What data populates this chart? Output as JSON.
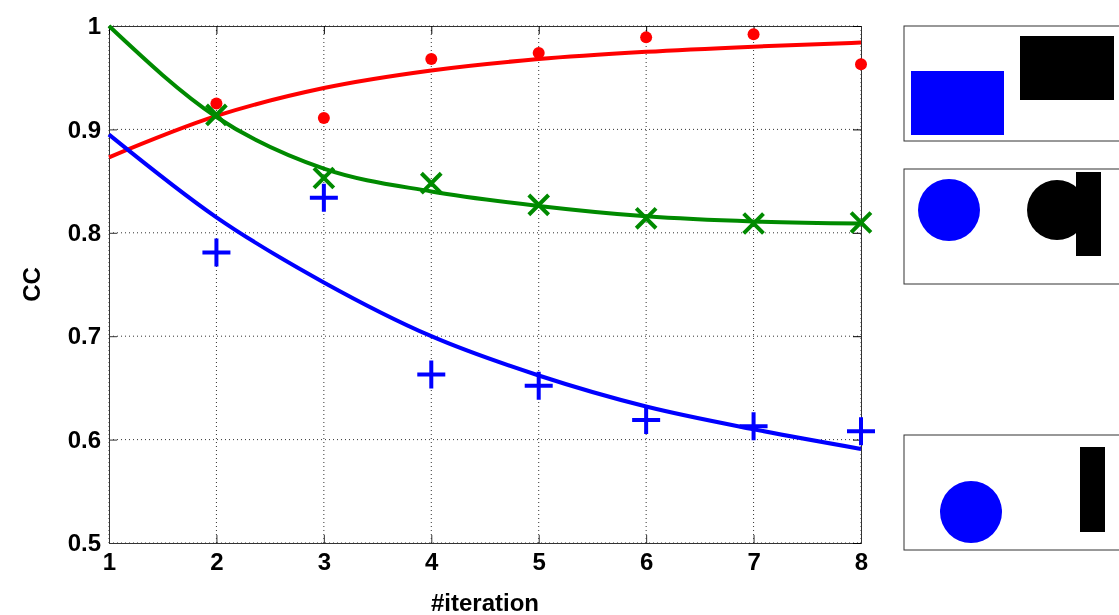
{
  "chart_data": {
    "type": "scatter",
    "xlabel": "#iteration",
    "ylabel": "CC",
    "x": [
      1,
      2,
      3,
      4,
      5,
      6,
      7,
      8
    ],
    "series": [
      {
        "type": "line",
        "color": "#ff0000",
        "marker": "none",
        "values": [
          0.873,
          0.913,
          0.94,
          0.957,
          0.968,
          0.975,
          0.98,
          0.984
        ]
      },
      {
        "type": "line",
        "color": "#008a00",
        "marker": "none",
        "values": [
          1.0,
          0.912,
          0.862,
          0.84,
          0.826,
          0.816,
          0.811,
          0.809
        ]
      },
      {
        "type": "line",
        "color": "#0000ff",
        "marker": "none",
        "values": [
          0.895,
          0.815,
          0.752,
          0.7,
          0.662,
          0.632,
          0.61,
          0.591
        ]
      },
      {
        "type": "scatter",
        "color": "#ff0000",
        "marker": "circle",
        "x": [
          2,
          3,
          4,
          5,
          6,
          7,
          8
        ],
        "values": [
          0.925,
          0.911,
          0.968,
          0.974,
          0.989,
          0.992,
          0.963
        ]
      },
      {
        "type": "scatter",
        "color": "#008a00",
        "marker": "x",
        "x": [
          2,
          3,
          4,
          5,
          6,
          7,
          8
        ],
        "values": [
          0.914,
          0.853,
          0.848,
          0.827,
          0.814,
          0.809,
          0.81
        ]
      },
      {
        "type": "scatter",
        "color": "#0000ff",
        "marker": "cross",
        "x": [
          2,
          3,
          4,
          5,
          6,
          7,
          8
        ],
        "values": [
          0.781,
          0.834,
          0.663,
          0.652,
          0.619,
          0.613,
          0.608
        ]
      }
    ],
    "xlim": [
      1,
      8
    ],
    "xticks": [
      1,
      2,
      3,
      4,
      5,
      6,
      7,
      8
    ],
    "ylim": [
      0.5,
      1
    ],
    "yticks": [
      0.5,
      0.6,
      0.7,
      0.8,
      0.9,
      1
    ],
    "grid": true
  }
}
